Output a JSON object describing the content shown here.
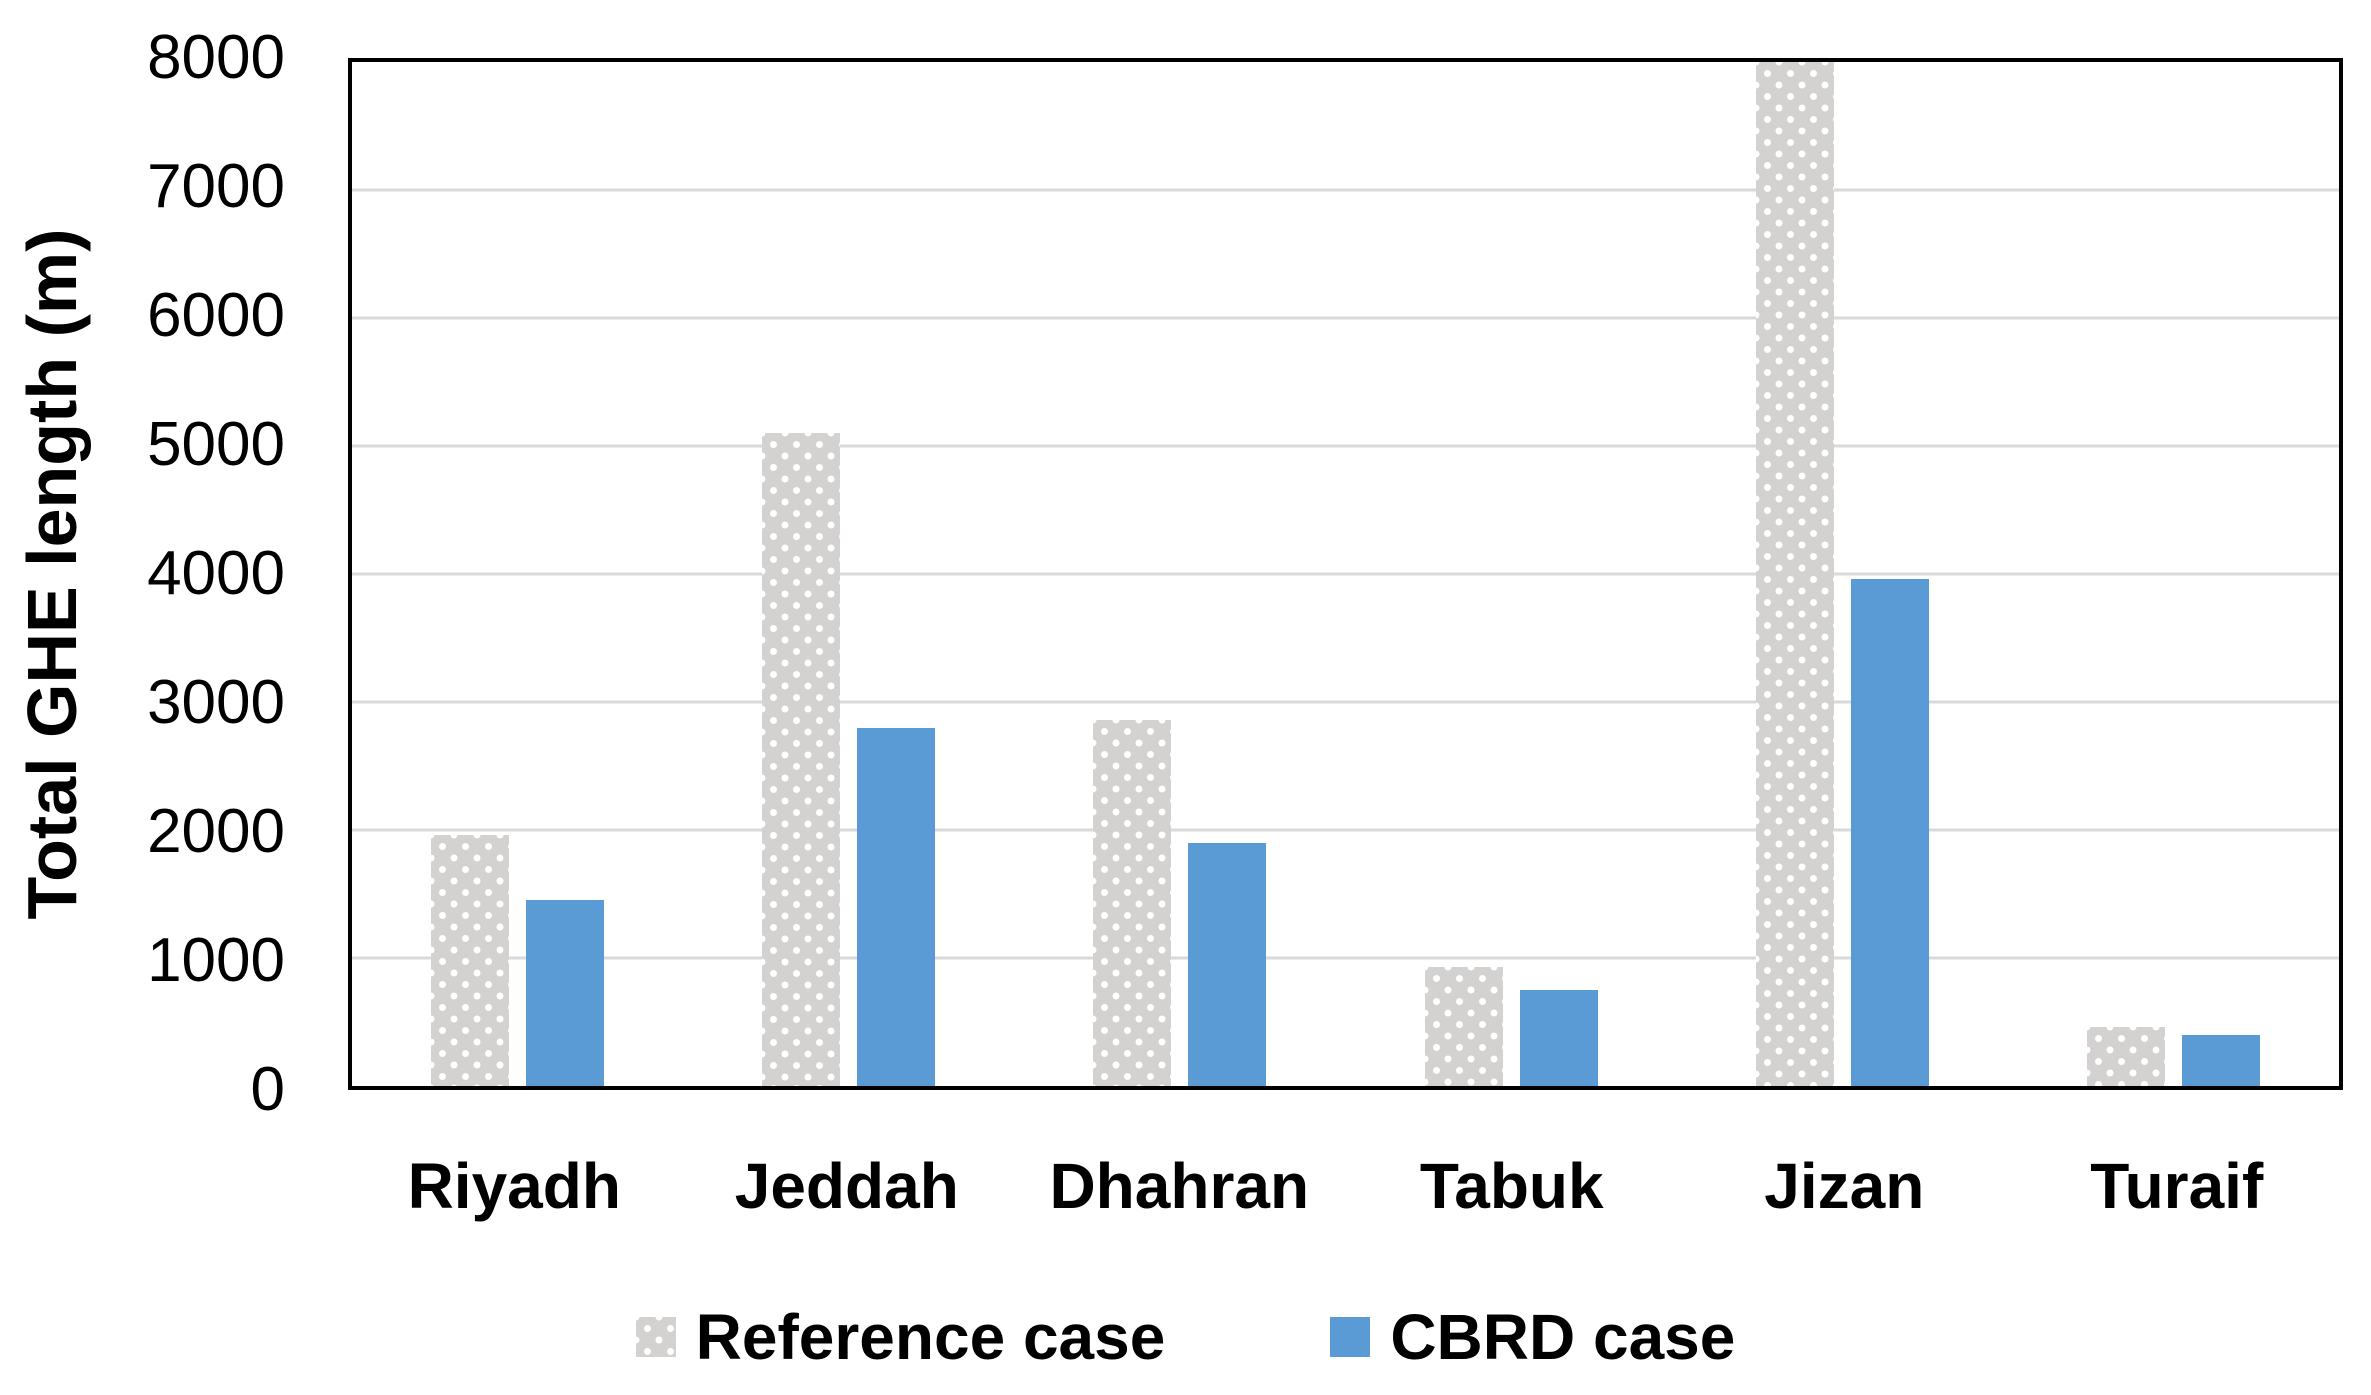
{
  "chart_data": {
    "type": "bar",
    "title": "",
    "categories": [
      "Riyadh",
      "Jeddah",
      "Dhahran",
      "Tabuk",
      "Jizan",
      "Turaif"
    ],
    "series": [
      {
        "name": "Reference case",
        "style": "gray-dotted-pattern",
        "color": "#D3D2D1",
        "values": [
          1960,
          5100,
          2860,
          930,
          8000,
          460
        ]
      },
      {
        "name": "CBRD case",
        "style": "solid",
        "color": "#5B9BD5",
        "values": [
          1450,
          2800,
          1900,
          750,
          3960,
          400
        ]
      }
    ],
    "xlabel": "",
    "ylabel": "Total GHE length (m)",
    "ylim": [
      0,
      8000
    ],
    "yticks": [
      0,
      1000,
      2000,
      3000,
      4000,
      5000,
      6000,
      7000,
      8000
    ],
    "grid": true,
    "legend_position": "bottom"
  },
  "colors": {
    "background": "#FFFFFF",
    "axis_border": "#000000",
    "gridline": "#D9D9D9",
    "text": "#000000",
    "bar_blue": "#5B9BD5",
    "bar_gray": "#D3D2D1"
  }
}
